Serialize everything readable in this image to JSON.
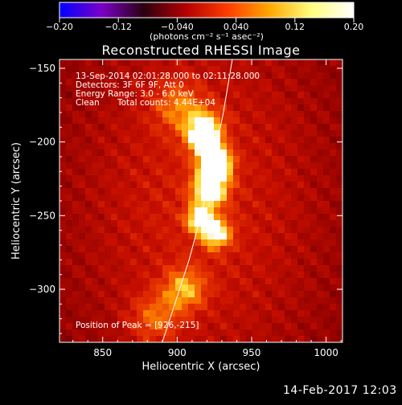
{
  "chart_data": {
    "type": "heatmap",
    "title": "Reconstructed RHESSI Image",
    "colorbar": {
      "label": "(photons cm⁻² s⁻¹ asec⁻²)",
      "range": [
        -0.2,
        0.2
      ],
      "ticks": [
        "-0.20",
        "-0.12",
        "-0.040",
        "0.040",
        "0.12",
        "0.20"
      ],
      "colors": [
        "#0000ff",
        "#7a00c8",
        "#2a0010",
        "#b40000",
        "#ff3c00",
        "#ffa800",
        "#ffff80",
        "#ffffff"
      ]
    },
    "xlabel": "Heliocentric X (arcsec)",
    "ylabel": "Heliocentric Y (arcsec)",
    "xlim": [
      821,
      1011
    ],
    "ylim": [
      -336,
      -144
    ],
    "xticks": [
      850,
      900,
      950,
      1000
    ],
    "yticks": [
      -150,
      -200,
      -250,
      -300
    ],
    "limb": [
      [
        890,
        -336
      ],
      [
        900,
        -305
      ],
      [
        908,
        -280
      ],
      [
        916,
        -250
      ],
      [
        924,
        -215
      ],
      [
        931,
        -180
      ],
      [
        937,
        -144
      ]
    ],
    "sources": [
      {
        "x": 926,
        "y": -215,
        "peak": 1.0,
        "sigma": 7
      },
      {
        "x": 922,
        "y": -232,
        "peak": 0.75,
        "sigma": 8
      },
      {
        "x": 915,
        "y": -252,
        "peak": 0.65,
        "sigma": 6
      },
      {
        "x": 926,
        "y": -262,
        "peak": 0.62,
        "sigma": 7
      },
      {
        "x": 918,
        "y": -200,
        "peak": 0.55,
        "sigma": 7
      },
      {
        "x": 918,
        "y": -190,
        "peak": 0.5,
        "sigma": 9
      },
      {
        "x": 905,
        "y": -300,
        "peak": 0.4,
        "sigma": 10
      },
      {
        "x": 885,
        "y": -320,
        "peak": 0.3,
        "sigma": 12
      },
      {
        "x": 900,
        "y": -175,
        "peak": 0.3,
        "sigma": 12
      }
    ],
    "annotations": [
      "13-Sep-2014 02:01:28.000 to 02:11:28.000",
      "Detectors: 3F 6F 9F, Att 0",
      "Energy Range: 3.0 - 6.0 keV",
      "Clean",
      "Total counts: 4.44E+04",
      "Position of Peak = [926,-215]"
    ]
  },
  "footer": {
    "timestamp": "14-Feb-2017 12:03"
  }
}
